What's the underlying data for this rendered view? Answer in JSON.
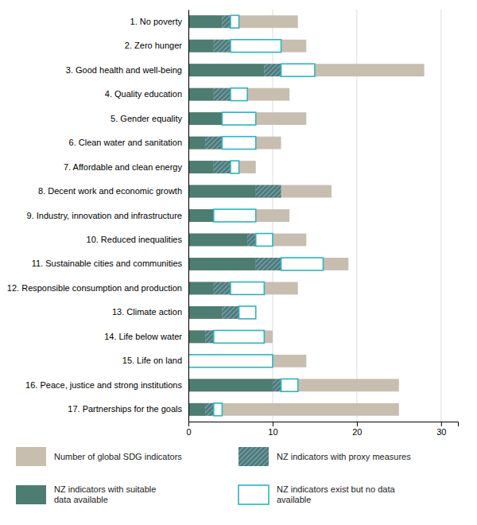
{
  "chart_data": {
    "type": "bar",
    "orientation": "horizontal",
    "stacked": true,
    "grid": true,
    "legend": "bottom",
    "categories": [
      "1. No poverty",
      "2. Zero hunger",
      "3. Good health and well-being",
      "4. Quality education",
      "5. Gender equality",
      "6. Clean water and sanitation",
      "7. Affordable and clean energy",
      "8. Decent work and economic growth",
      "9. Industry, innovation and infrastructure",
      "10. Reduced inequalities",
      "11. Sustainable cities and communities",
      "12. Responsible consumption and production",
      "13. Climate action",
      "14. Life below water",
      "15. Life on land",
      "16. Peace, justice and strong institutions",
      "17. Partnerships for the goals"
    ],
    "series": [
      {
        "name": "Number of global SDG indicators",
        "type": "bar",
        "color": "#c8beb0",
        "values": [
          13,
          14,
          28,
          12,
          14,
          11,
          8,
          17,
          12,
          14,
          19,
          13,
          8,
          10,
          14,
          25,
          25
        ]
      },
      {
        "name": "NZ indicators with suitable\ndata available",
        "type": "stacked",
        "color": "#4d7c70",
        "values": [
          4,
          3,
          9,
          3,
          4,
          2,
          3,
          8,
          3,
          7,
          8,
          3,
          4,
          2,
          0,
          10,
          2
        ]
      },
      {
        "name": "NZ indicators with proxy measures",
        "type": "hatched",
        "color": "#7a9cc0",
        "values": [
          1,
          2,
          2,
          2,
          0,
          2,
          2,
          3,
          0,
          1,
          3,
          2,
          2,
          1,
          0,
          1,
          1
        ]
      },
      {
        "name": "NZ indicators exist but no data\navailable",
        "type": "outline",
        "color": "#2ab5c2",
        "values": [
          1,
          6,
          4,
          2,
          4,
          4,
          1,
          0,
          5,
          2,
          5,
          4,
          2,
          6,
          10,
          2,
          1
        ]
      }
    ],
    "xlim": [
      0,
      32
    ],
    "xticks": [
      0,
      10,
      20,
      30
    ]
  }
}
